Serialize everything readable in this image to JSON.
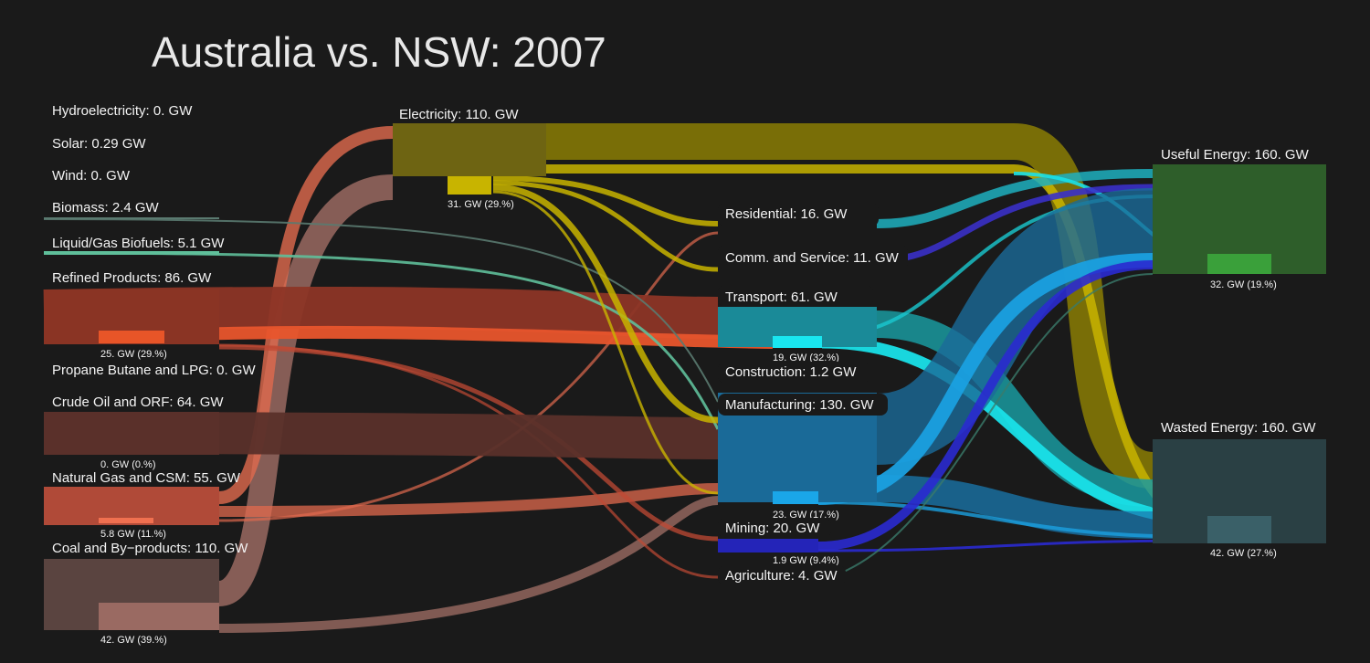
{
  "title": "Australia vs. NSW: 2007",
  "colors": {
    "background": "#1a1a1a",
    "electricity": "#c8b400",
    "refined": "#d94a2c",
    "crude": "#7a3a30",
    "gas": "#e06040",
    "coal": "#9a6a60",
    "biofuel": "#5fbf9a",
    "transport": "#19e0e8",
    "manufacturing": "#1a8acc",
    "mining": "#2020c0",
    "useful": "#2f6a2a",
    "wasted": "#2c4448"
  },
  "sources": [
    {
      "id": "hydro",
      "label": "Hydroelectricity: 0. GW"
    },
    {
      "id": "solar",
      "label": "Solar: 0.29 GW"
    },
    {
      "id": "wind",
      "label": "Wind: 0. GW"
    },
    {
      "id": "biomass",
      "label": "Biomass: 2.4 GW"
    },
    {
      "id": "biofuels",
      "label": "Liquid/Gas Biofuels: 5.1 GW"
    },
    {
      "id": "refined",
      "label": "Refined Products: 86. GW",
      "nsw": "25. GW  (29.%)"
    },
    {
      "id": "lpg",
      "label": "Propane Butane and LPG: 0. GW"
    },
    {
      "id": "crude",
      "label": "Crude Oil and ORF: 64. GW",
      "nsw": "0. GW  (0.%)"
    },
    {
      "id": "gas",
      "label": "Natural Gas and CSM: 55. GW",
      "nsw": "5.8 GW  (11.%)"
    },
    {
      "id": "coal",
      "label": "Coal and By−products: 110. GW",
      "nsw": "42. GW  (39.%)"
    }
  ],
  "electricity": {
    "label": "Electricity: 110. GW",
    "nsw": "31. GW  (29.%)"
  },
  "sectors": [
    {
      "id": "residential",
      "label": "Residential: 16. GW"
    },
    {
      "id": "commercial",
      "label": "Comm. and Service: 11. GW"
    },
    {
      "id": "transport",
      "label": "Transport: 61. GW",
      "nsw": "19. GW  (32.%)"
    },
    {
      "id": "construction",
      "label": "Construction: 1.2 GW"
    },
    {
      "id": "manufacturing",
      "label": "Manufacturing: 130. GW",
      "nsw": "23. GW  (17.%)"
    },
    {
      "id": "mining",
      "label": "Mining: 20. GW",
      "nsw": "1.9 GW  (9.4%)"
    },
    {
      "id": "agriculture",
      "label": "Agriculture: 4. GW"
    }
  ],
  "sinks": [
    {
      "id": "useful",
      "label": "Useful Energy: 160. GW",
      "nsw": "32. GW  (19.%)"
    },
    {
      "id": "wasted",
      "label": "Wasted Energy: 160. GW",
      "nsw": "42. GW  (27.%)"
    }
  ]
}
